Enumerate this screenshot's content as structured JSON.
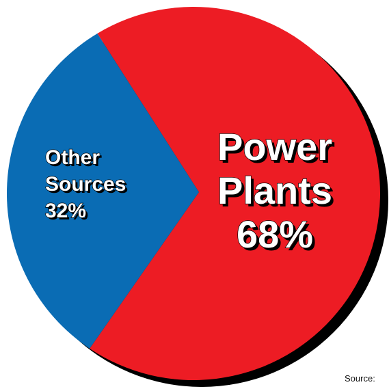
{
  "chart_data": {
    "type": "pie",
    "slices": [
      {
        "label": "Power Plants",
        "value": 68,
        "value_text": "68%",
        "color": "#ED1C24",
        "label_lines": [
          "Power",
          "Plants",
          "68%"
        ]
      },
      {
        "label": "Other Sources",
        "value": 32,
        "value_text": "32%",
        "color": "#0A6CB4",
        "label_lines": [
          "Other",
          "Sources",
          "32%"
        ]
      }
    ],
    "shadow_color": "#000000",
    "source_text": "Source:"
  }
}
